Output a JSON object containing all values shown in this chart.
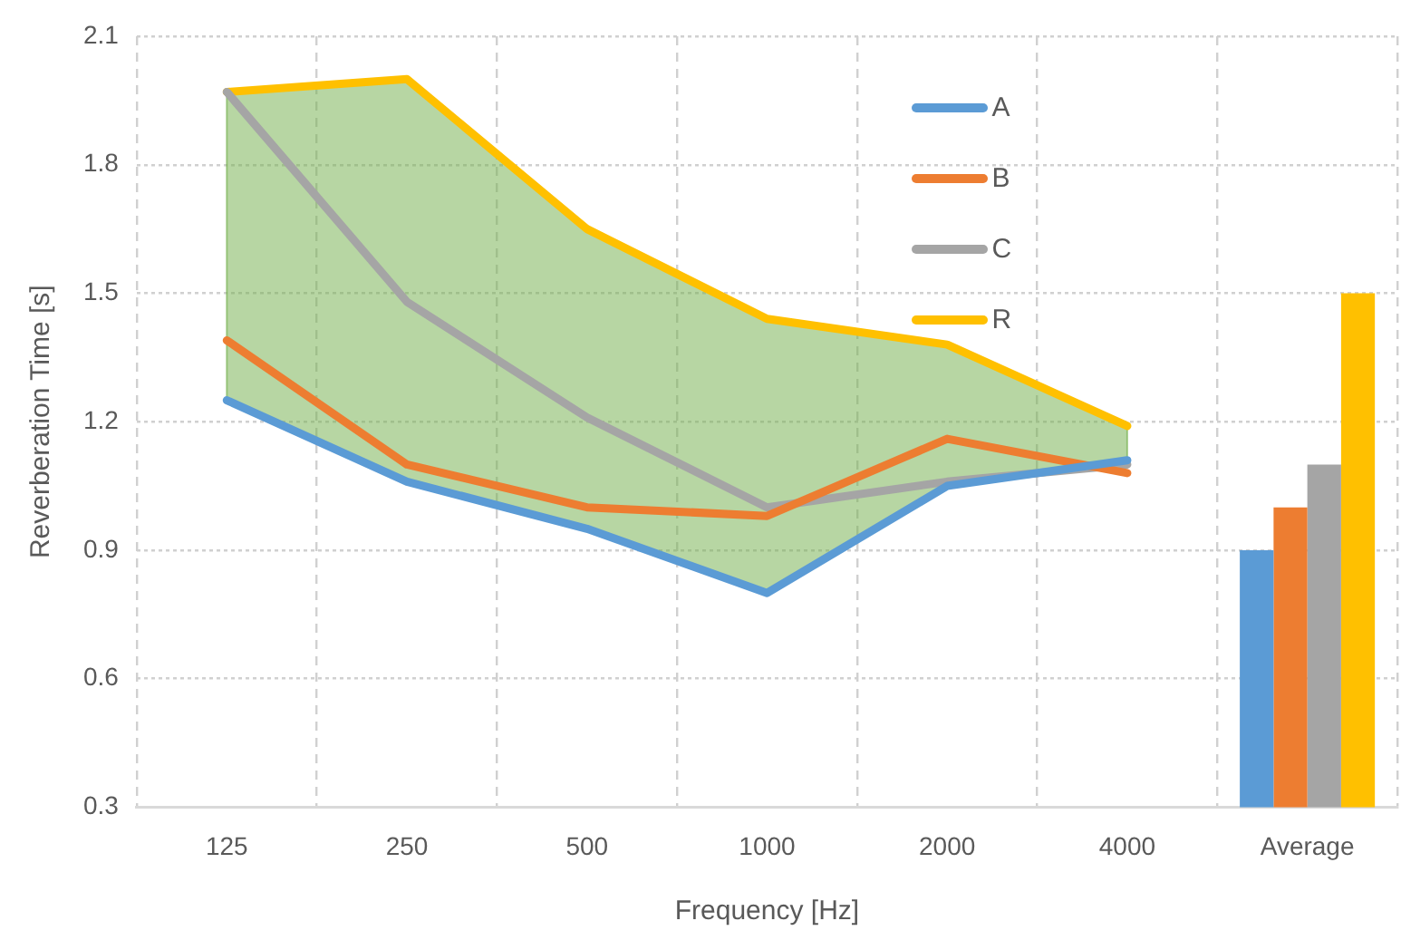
{
  "chart_data": {
    "type": "line",
    "xlabel": "Frequency [Hz]",
    "ylabel": "Reverberation Time [s]",
    "categories": [
      "125",
      "250",
      "500",
      "1000",
      "2000",
      "4000",
      "Average"
    ],
    "series": [
      {
        "name": "A",
        "color": "#5b9bd5",
        "values": [
          1.25,
          1.06,
          0.95,
          0.8,
          1.05,
          1.11,
          null
        ]
      },
      {
        "name": "B",
        "color": "#ed7d31",
        "values": [
          1.39,
          1.1,
          1.0,
          0.98,
          1.16,
          1.08,
          null
        ]
      },
      {
        "name": "C",
        "color": "#a5a5a5",
        "values": [
          1.97,
          1.48,
          1.21,
          1.0,
          1.06,
          1.1,
          null
        ]
      },
      {
        "name": "R",
        "color": "#ffc000",
        "values": [
          1.97,
          2.0,
          1.65,
          1.44,
          1.38,
          1.19,
          null
        ],
        "lower": [
          1.25,
          1.06,
          0.95,
          0.8,
          1.05,
          1.11,
          null
        ],
        "upper": [
          1.97,
          2.0,
          1.65,
          1.44,
          1.38,
          1.19,
          null
        ]
      },
      {
        "type": "bar",
        "color": "#5b9bd5",
        "values": [
          null,
          null,
          null,
          null,
          null,
          null,
          0.9
        ]
      },
      {
        "type": "bar",
        "color": "#ed7d31",
        "values": [
          null,
          null,
          null,
          null,
          null,
          null,
          1.0
        ]
      },
      {
        "type": "bar",
        "color": "#a5a5a5",
        "values": [
          null,
          null,
          null,
          null,
          null,
          null,
          1.1
        ]
      },
      {
        "type": "bar",
        "color": "#ffc000",
        "values": [
          null,
          null,
          null,
          null,
          null,
          null,
          1.5
        ]
      }
    ],
    "ylim": [
      0.3,
      2.1
    ],
    "yticks": [
      0.3,
      0.6,
      0.9,
      1.2,
      1.5,
      1.8,
      2.1
    ],
    "grid": true,
    "legend": "top right",
    "marker": "none",
    "line_style": "solid"
  }
}
